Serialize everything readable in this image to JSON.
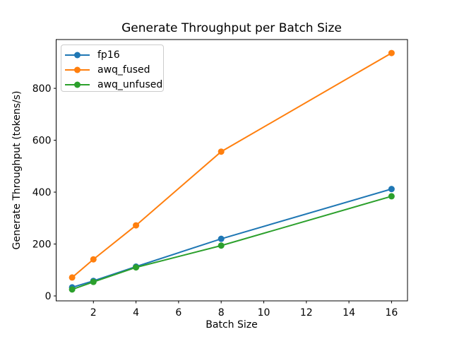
{
  "chart_data": {
    "type": "line",
    "title": "Generate Throughput per Batch Size",
    "xlabel": "Batch Size",
    "ylabel": "Generate Throughput (tokens/s)",
    "x": [
      1,
      2,
      4,
      8,
      16
    ],
    "series": [
      {
        "name": "fp16",
        "color": "#1f77b4",
        "values": [
          33,
          58,
          113,
          220,
          412
        ]
      },
      {
        "name": "awq_fused",
        "color": "#ff7f0e",
        "values": [
          71,
          141,
          272,
          556,
          936
        ]
      },
      {
        "name": "awq_unfused",
        "color": "#2ca02c",
        "values": [
          25,
          54,
          110,
          194,
          384
        ]
      }
    ],
    "xticks": [
      2,
      4,
      6,
      8,
      10,
      12,
      14,
      16
    ],
    "yticks": [
      0,
      200,
      400,
      600,
      800
    ],
    "xlim": [
      0.25,
      16.75
    ],
    "ylim": [
      -19,
      988
    ],
    "grid": false,
    "marker": "o",
    "legend_position": "upper left"
  }
}
